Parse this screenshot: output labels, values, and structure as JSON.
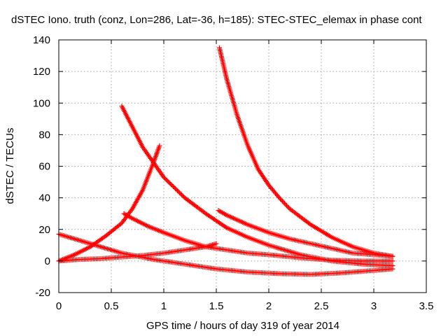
{
  "chart_data": {
    "type": "scatter",
    "title": "dSTEC Iono. truth (conz, Lon=286, Lat=-36, h=185): STEC-STEC_elemax in phase cont",
    "xlabel": "GPS time / hours of day 319 of year 2014",
    "ylabel": "dSTEC  / TECUs",
    "xlim": [
      0,
      3.5
    ],
    "ylim": [
      -20,
      140
    ],
    "xticks": [
      "0",
      "0.5",
      "1",
      "1.5",
      "2",
      "2.5",
      "3",
      "3.5"
    ],
    "yticks": [
      "-20",
      "0",
      "20",
      "40",
      "60",
      "80",
      "100",
      "120",
      "140"
    ],
    "grid": true,
    "marker": "+",
    "color": "#ff0000",
    "series": [
      {
        "x": [
          0.0,
          0.2,
          0.4,
          0.6,
          0.8,
          1.0,
          1.2,
          1.4,
          1.5
        ],
        "y": [
          0,
          1,
          1.5,
          2.5,
          3.5,
          5,
          7,
          9,
          11
        ]
      },
      {
        "x": [
          0.0,
          0.15,
          0.3,
          0.45,
          0.6,
          0.7,
          0.8,
          0.9,
          0.96
        ],
        "y": [
          0,
          4,
          9,
          16,
          24,
          33,
          45,
          62,
          73
        ]
      },
      {
        "x": [
          0.0,
          0.3,
          0.6,
          0.9,
          1.2,
          1.5,
          1.8,
          2.1,
          2.4,
          2.7,
          3.0,
          3.18
        ],
        "y": [
          17,
          11,
          5,
          1,
          -2,
          -5,
          -7,
          -8,
          -8.5,
          -7.5,
          -6,
          -5
        ]
      },
      {
        "x": [
          0.6,
          0.8,
          1.0,
          1.2,
          1.4,
          1.6,
          1.8,
          2.0,
          2.3,
          2.6,
          2.9,
          3.18
        ],
        "y": [
          98,
          72,
          53,
          40,
          30,
          21,
          15,
          10,
          4,
          0,
          -2,
          -3
        ]
      },
      {
        "x": [
          0.62,
          0.7,
          0.85,
          1.0,
          1.2,
          1.4,
          1.6,
          1.8,
          2.0,
          2.3,
          2.6,
          2.9,
          3.18
        ],
        "y": [
          30,
          27,
          22,
          18,
          13,
          9,
          7,
          5,
          4,
          2,
          0.5,
          0,
          0
        ]
      },
      {
        "x": [
          1.53,
          1.6,
          1.7,
          1.8,
          1.9,
          2.0,
          2.1,
          2.2,
          2.4,
          2.6,
          2.8,
          3.0,
          3.18
        ],
        "y": [
          135,
          115,
          92,
          73,
          58,
          48,
          40,
          33,
          23,
          15,
          9,
          5,
          3
        ]
      },
      {
        "x": [
          1.52,
          1.6,
          1.7,
          1.8,
          2.0,
          2.2,
          2.4,
          2.6,
          2.8,
          3.0,
          3.18
        ],
        "y": [
          32,
          29,
          26,
          23,
          18,
          14,
          11,
          8,
          5,
          4,
          3
        ]
      }
    ]
  }
}
